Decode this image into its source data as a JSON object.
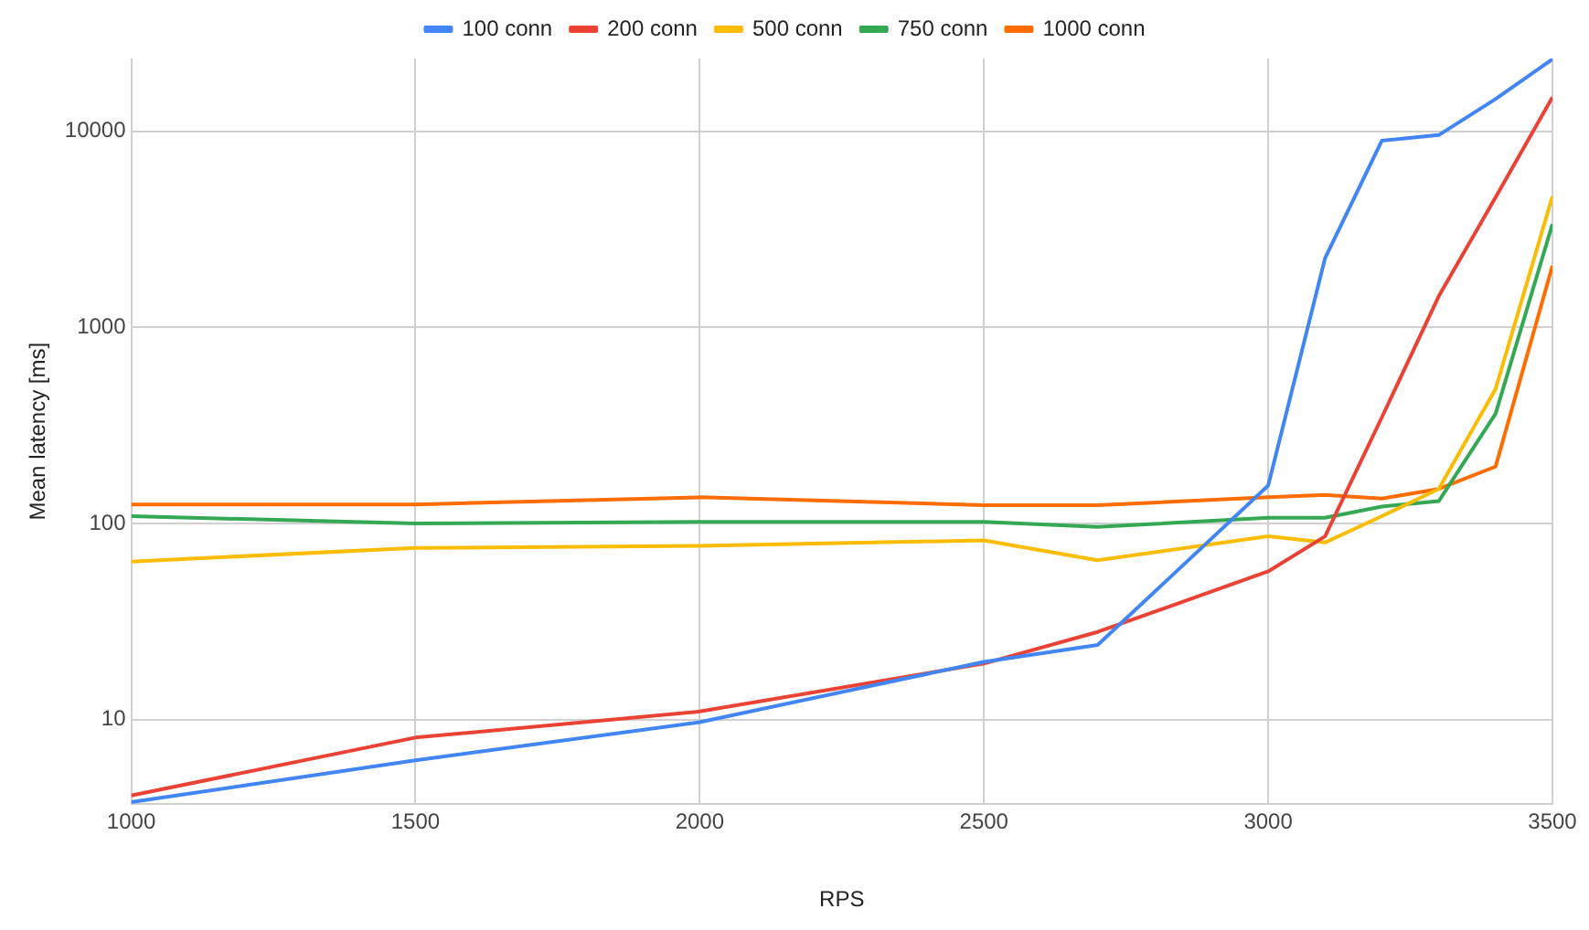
{
  "chart_data": {
    "type": "line",
    "xlabel": "RPS",
    "ylabel": "Mean latency [ms]",
    "log": "y",
    "grid": true,
    "legend": "top",
    "marker": "none",
    "line_style": "solid",
    "x": [
      1000,
      1500,
      2000,
      2500,
      2700,
      3000,
      3100,
      3200,
      3300,
      3400,
      3500
    ],
    "xlim": [
      1000,
      3500
    ],
    "xticks": [
      1000,
      1500,
      2000,
      2500,
      3000,
      3500
    ],
    "ylim": [
      3.7,
      23500
    ],
    "yticks": [
      10,
      100,
      1000,
      10000
    ],
    "series": [
      {
        "name": "100 conn",
        "color": "#4285f4",
        "values": [
          3.8,
          6.2,
          9.7,
          19.7,
          24,
          156,
          2250,
          8960,
          9560,
          14600,
          23300
        ]
      },
      {
        "name": "200 conn",
        "color": "#ea4335",
        "values": [
          4.1,
          8.1,
          11,
          19.3,
          28,
          57,
          86,
          348,
          1440,
          4600,
          14900
        ]
      },
      {
        "name": "500 conn",
        "color": "#fbbc04",
        "values": [
          64,
          75,
          77,
          82,
          65,
          86,
          80,
          109,
          150,
          485,
          4650
        ]
      },
      {
        "name": "750 conn",
        "color": "#34a853",
        "values": [
          109,
          100,
          102,
          102,
          96,
          107,
          107,
          122,
          130,
          363,
          3360
        ]
      },
      {
        "name": "1000 conn",
        "color": "#ff6d01",
        "values": [
          125,
          125,
          136,
          124,
          124,
          136,
          140,
          134,
          150,
          195,
          2060
        ]
      }
    ]
  }
}
